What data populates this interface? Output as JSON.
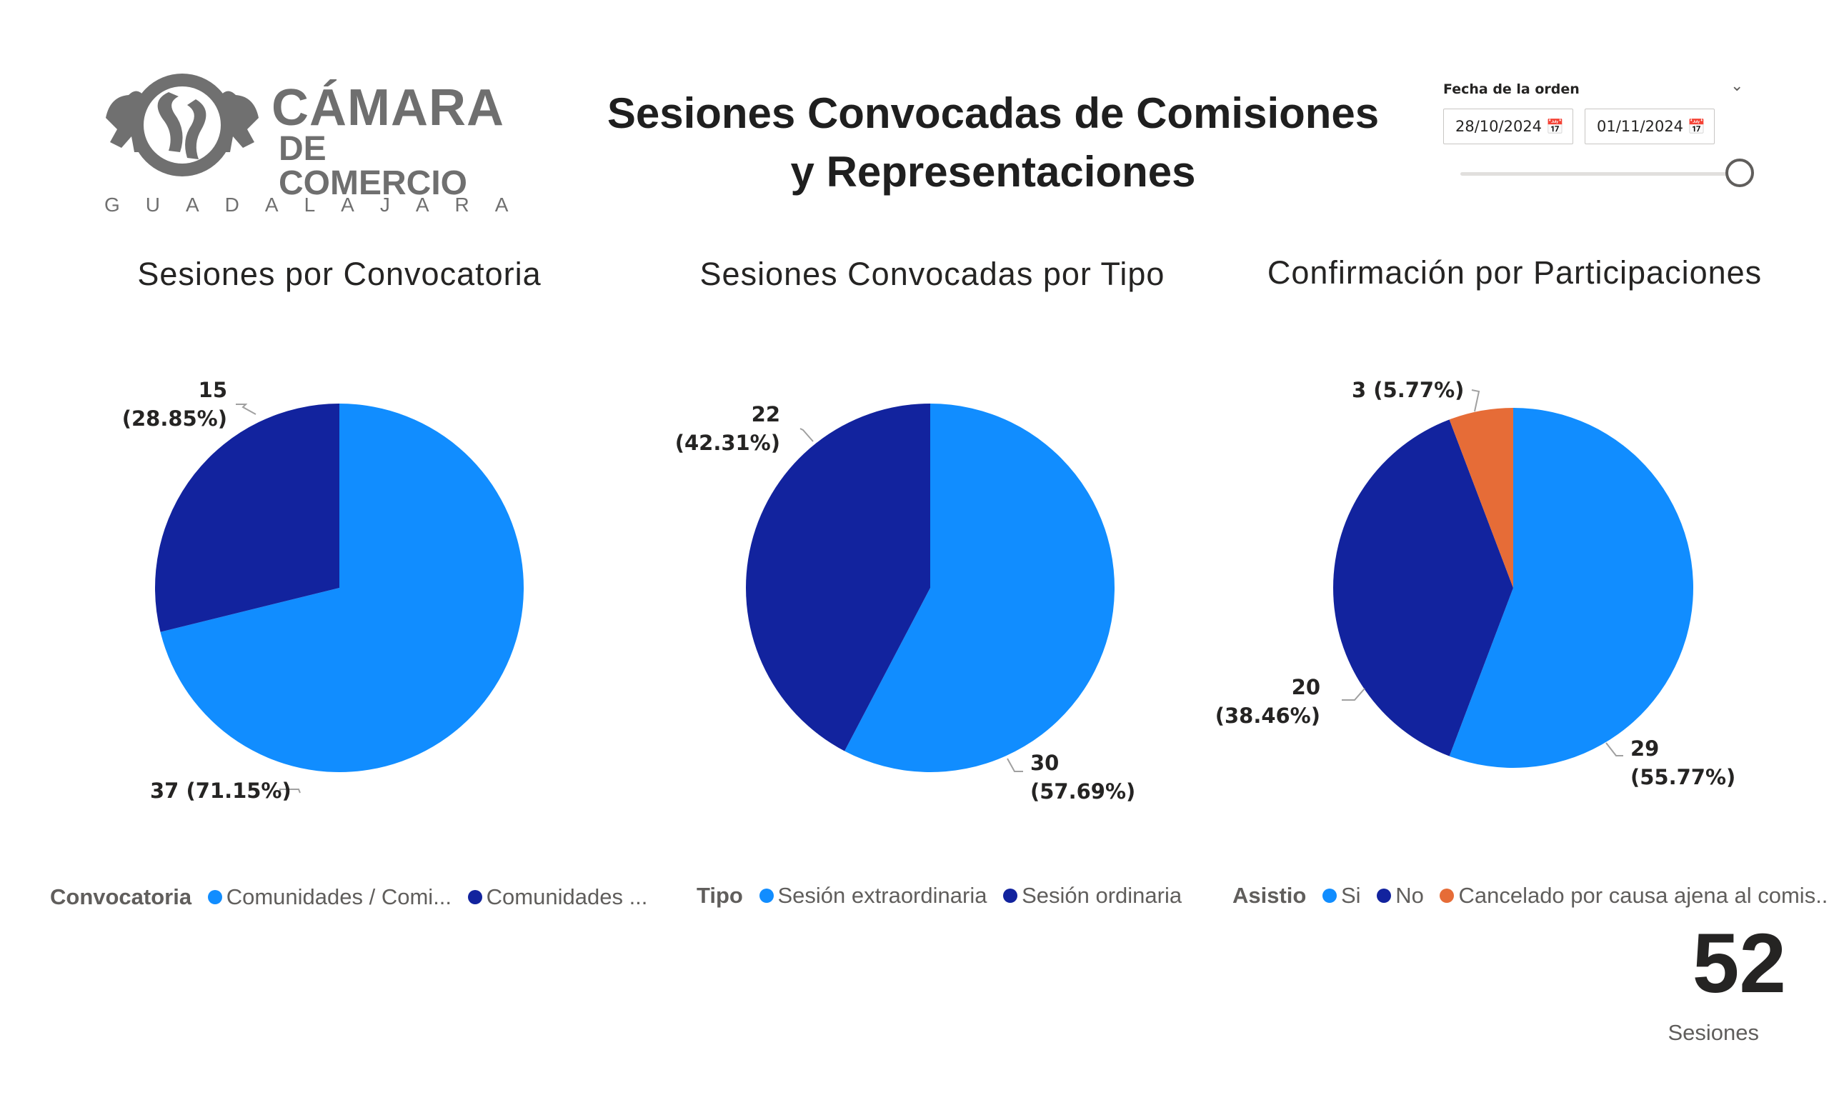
{
  "logo": {
    "line1": "CÁMARA",
    "line2": "DE COMERCIO",
    "line3": "GUADALAJARA"
  },
  "title": "Sesiones Convocadas de Comisiones\ny Representaciones",
  "slicer": {
    "label": "Fecha de la orden",
    "start_date": "28/10/2024",
    "end_date": "01/11/2024",
    "chevron_icon": "chevron-down-icon",
    "calendar_icon": "calendar-icon"
  },
  "colors": {
    "light_blue": "#118DFF",
    "dark_blue": "#12239E",
    "orange": "#E66C37"
  },
  "chart_data": [
    {
      "type": "pie",
      "title": "Sesiones por Convocatoria",
      "legend_title": "Convocatoria",
      "slices": [
        {
          "name": "Comunidades / Comi...",
          "value": 37,
          "percent": "71.15%",
          "label": "37 (71.15%)",
          "color": "#118DFF"
        },
        {
          "name": "Comunidades ...",
          "value": 15,
          "percent": "28.85%",
          "label_line1": "15",
          "label_line2": "(28.85%)",
          "color": "#12239E"
        }
      ]
    },
    {
      "type": "pie",
      "title": "Sesiones Convocadas por Tipo",
      "legend_title": "Tipo",
      "slices": [
        {
          "name": "Sesión extraordinaria",
          "value": 30,
          "percent": "57.69%",
          "label_line1": "30",
          "label_line2": "(57.69%)",
          "color": "#118DFF"
        },
        {
          "name": "Sesión ordinaria",
          "value": 22,
          "percent": "42.31%",
          "label_line1": "22",
          "label_line2": "(42.31%)",
          "color": "#12239E"
        }
      ]
    },
    {
      "type": "pie",
      "title": "Confirmación por Participaciones",
      "legend_title": "Asistio",
      "slices": [
        {
          "name": "Si",
          "value": 29,
          "percent": "55.77%",
          "label_line1": "29",
          "label_line2": "(55.77%)",
          "color": "#118DFF"
        },
        {
          "name": "No",
          "value": 20,
          "percent": "38.46%",
          "label_line1": "20",
          "label_line2": "(38.46%)",
          "color": "#12239E"
        },
        {
          "name": "Cancelado por causa ajena al comis...",
          "value": 3,
          "percent": "5.77%",
          "label": "3 (5.77%)",
          "color": "#E66C37"
        }
      ]
    }
  ],
  "kpi": {
    "value": "52",
    "label": "Sesiones"
  }
}
